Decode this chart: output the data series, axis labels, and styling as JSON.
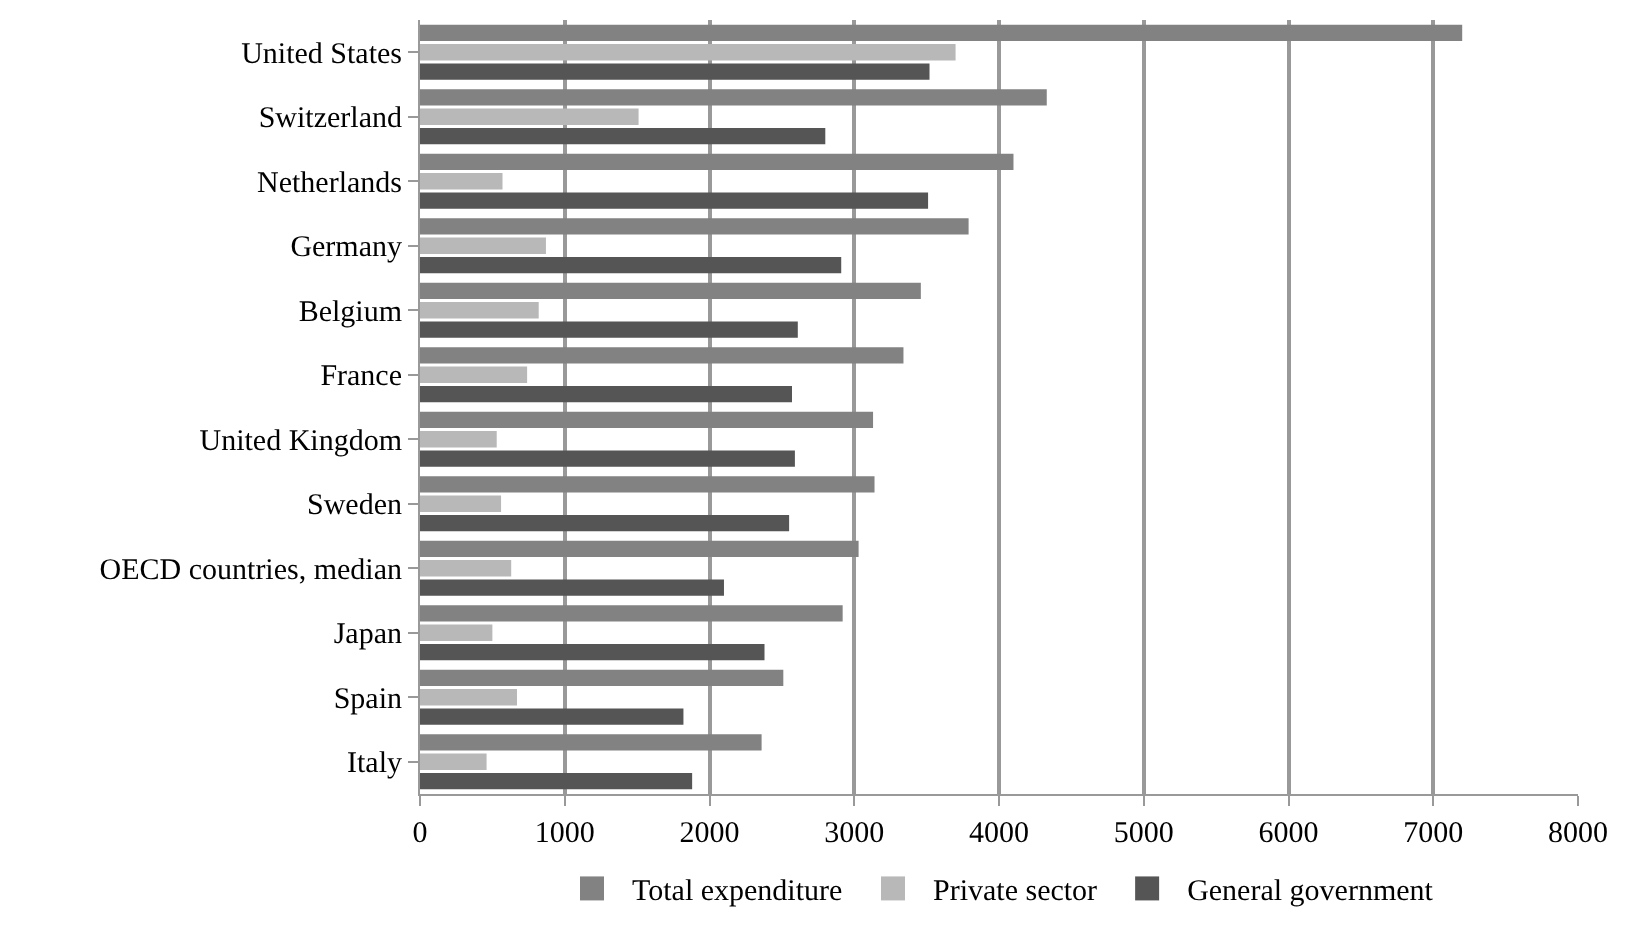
{
  "chart_data": {
    "type": "bar",
    "orientation": "horizontal",
    "categories": [
      "United States",
      "Switzerland",
      "Netherlands",
      "Germany",
      "Belgium",
      "France",
      "United Kingdom",
      "Sweden",
      "OECD countries, median",
      "Japan",
      "Spain",
      "Italy"
    ],
    "series": [
      {
        "name": "Total expenditure",
        "color": "#828282",
        "values": [
          7200,
          4330,
          4100,
          3790,
          3460,
          3340,
          3130,
          3140,
          3030,
          2920,
          2510,
          2360
        ]
      },
      {
        "name": "Private sector",
        "color": "#b8b8b8",
        "values": [
          3700,
          1510,
          570,
          870,
          820,
          740,
          530,
          560,
          630,
          500,
          670,
          460
        ]
      },
      {
        "name": "General government",
        "color": "#555555",
        "values": [
          3520,
          2800,
          3510,
          2910,
          2610,
          2570,
          2590,
          2550,
          2100,
          2380,
          1820,
          1880
        ]
      }
    ],
    "xlim": [
      0,
      8000
    ],
    "xticks": [
      0,
      1000,
      2000,
      3000,
      4000,
      5000,
      6000,
      7000,
      8000
    ],
    "grid": "x",
    "legend": "bottom"
  }
}
